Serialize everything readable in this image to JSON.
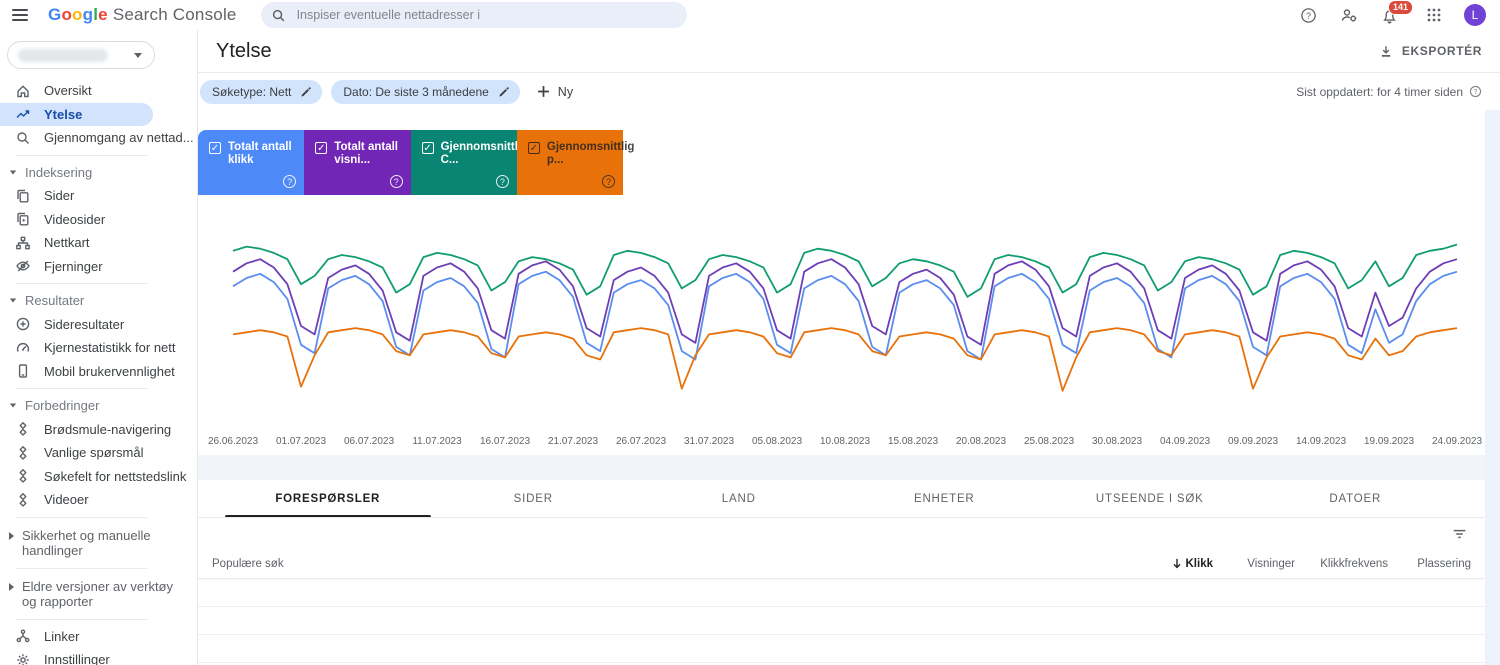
{
  "topbar": {
    "logo_google": "Google",
    "logo_suffix": "Search Console",
    "logo_letter_colors": [
      "#4285f4",
      "#ea4335",
      "#fbbc05",
      "#4285f4",
      "#34a853",
      "#ea4335"
    ],
    "search_placeholder": "Inspiser eventuelle nettadresser i",
    "notification_count": "141",
    "avatar_letter": "L",
    "avatar_color": "#7142d6"
  },
  "sidebar": {
    "property_selector": {
      "value": ""
    },
    "items": [
      {
        "type": "item",
        "icon": "home-icon",
        "label": "Oversikt"
      },
      {
        "type": "item",
        "icon": "trending-up-icon",
        "label": "Ytelse",
        "selected": true
      },
      {
        "type": "item",
        "icon": "search-icon",
        "label": "Gjennomgang av nettad..."
      },
      {
        "type": "divider"
      },
      {
        "type": "header",
        "label": "Indeksering"
      },
      {
        "type": "item",
        "icon": "pages-icon",
        "label": "Sider"
      },
      {
        "type": "item",
        "icon": "video-pages-icon",
        "label": "Videosider"
      },
      {
        "type": "item",
        "icon": "sitemap-icon",
        "label": "Nettkart"
      },
      {
        "type": "item",
        "icon": "eye-off-icon",
        "label": "Fjerninger"
      },
      {
        "type": "divider"
      },
      {
        "type": "header",
        "label": "Resultater"
      },
      {
        "type": "item",
        "icon": "circle-plus-icon",
        "label": "Sideresultater"
      },
      {
        "type": "item",
        "icon": "speedometer-icon",
        "label": "Kjernestatistikk for nett"
      },
      {
        "type": "item",
        "icon": "mobile-icon",
        "label": "Mobil brukervennlighet"
      },
      {
        "type": "divider"
      },
      {
        "type": "header",
        "label": "Forbedringer"
      },
      {
        "type": "item",
        "icon": "rich-results-icon",
        "label": "Brødsmule-navigering"
      },
      {
        "type": "item",
        "icon": "rich-results-icon",
        "label": "Vanlige spørsmål"
      },
      {
        "type": "item",
        "icon": "rich-results-icon",
        "label": "Søkefelt for nettstedslink"
      },
      {
        "type": "item",
        "icon": "rich-results-icon",
        "label": "Videoer"
      },
      {
        "type": "divider"
      },
      {
        "type": "header-collapsed",
        "label": "Sikkerhet og manuelle handlinger"
      },
      {
        "type": "divider"
      },
      {
        "type": "header-collapsed",
        "label": "Eldre versjoner av verktøy og rapporter"
      },
      {
        "type": "divider"
      },
      {
        "type": "item",
        "icon": "links-icon",
        "label": "Linker"
      },
      {
        "type": "item",
        "icon": "gear-icon",
        "label": "Innstillinger"
      },
      {
        "type": "divider"
      }
    ]
  },
  "header": {
    "title": "Ytelse",
    "export_label": "EKSPORTÉR",
    "last_updated": "Sist oppdatert: for 4 timer siden"
  },
  "filters": {
    "chips": [
      {
        "label": "Søketype: Nett"
      },
      {
        "label": "Dato: De siste 3 månedene"
      }
    ],
    "new_label": "Ny"
  },
  "metric_cards": [
    {
      "label": "Totalt antall klikk",
      "checked": true,
      "bg": "#4e8af7",
      "text_color": "#ffffff"
    },
    {
      "label": "Totalt antall visni...",
      "checked": true,
      "bg": "#7126b5",
      "text_color": "#ffffff"
    },
    {
      "label": "Gjennomsnittlig C...",
      "checked": true,
      "bg": "#0b8573",
      "text_color": "#ffffff"
    },
    {
      "label": "Gjennomsnittlig p...",
      "checked": true,
      "bg": "#e8710a",
      "text_color": "rgba(32,33,36,0.82)"
    }
  ],
  "chart_data": {
    "type": "line",
    "title": "",
    "grid": false,
    "legend_position": "top-cards",
    "x_axis": {
      "start_date": "26.06.2023",
      "end_date": "24.09.2023",
      "points_per_series": 91,
      "tick_labels": [
        "26.06.2023",
        "01.07.2023",
        "06.07.2023",
        "11.07.2023",
        "16.07.2023",
        "21.07.2023",
        "26.07.2023",
        "31.07.2023",
        "05.08.2023",
        "10.08.2023",
        "15.08.2023",
        "20.08.2023",
        "25.08.2023",
        "30.08.2023",
        "04.09.2023",
        "09.09.2023",
        "14.09.2023",
        "19.09.2023",
        "24.09.2023"
      ]
    },
    "y_axis": {
      "visible": false,
      "note": "No y-axis labels shown in UI; series values are estimated, normalized 0-100 of plot height"
    },
    "series": [
      {
        "name": "Totalt antall klikk",
        "color": "#5b8def",
        "values": [
          63,
          67,
          69,
          65,
          57,
          35,
          31,
          62,
          66,
          68,
          64,
          56,
          34,
          30,
          61,
          65,
          67,
          63,
          55,
          33,
          29,
          64,
          68,
          70,
          66,
          58,
          36,
          32,
          60,
          64,
          66,
          62,
          54,
          32,
          28,
          63,
          67,
          69,
          65,
          57,
          35,
          31,
          62,
          66,
          68,
          64,
          56,
          34,
          30,
          60,
          64,
          66,
          62,
          54,
          32,
          28,
          63,
          67,
          69,
          65,
          57,
          35,
          31,
          61,
          65,
          67,
          63,
          55,
          33,
          29,
          62,
          66,
          68,
          64,
          56,
          34,
          30,
          63,
          67,
          69,
          65,
          57,
          35,
          31,
          52,
          36,
          40,
          56,
          64,
          68,
          70
        ]
      },
      {
        "name": "Totalt antall visninger",
        "color": "#6e3eb6",
        "values": [
          70,
          74,
          76,
          72,
          64,
          44,
          40,
          67,
          71,
          73,
          69,
          61,
          41,
          37,
          68,
          72,
          74,
          70,
          62,
          42,
          38,
          69,
          73,
          75,
          71,
          63,
          43,
          39,
          66,
          70,
          72,
          68,
          60,
          40,
          36,
          68,
          72,
          74,
          70,
          62,
          42,
          38,
          70,
          74,
          76,
          72,
          64,
          44,
          40,
          65,
          69,
          71,
          67,
          59,
          39,
          35,
          69,
          73,
          75,
          71,
          63,
          43,
          39,
          68,
          72,
          74,
          70,
          62,
          42,
          38,
          67,
          71,
          73,
          69,
          61,
          41,
          37,
          69,
          73,
          75,
          71,
          63,
          43,
          39,
          60,
          44,
          48,
          62,
          70,
          74,
          76
        ]
      },
      {
        "name": "Gjennomsnittlig CTR",
        "color": "#0f9d70",
        "values": [
          80,
          82,
          81,
          79,
          76,
          64,
          68,
          76,
          78,
          77,
          75,
          72,
          60,
          64,
          77,
          79,
          78,
          76,
          73,
          61,
          65,
          75,
          77,
          76,
          74,
          71,
          59,
          63,
          78,
          80,
          79,
          77,
          74,
          62,
          66,
          76,
          78,
          77,
          75,
          72,
          60,
          64,
          79,
          81,
          80,
          78,
          75,
          63,
          67,
          74,
          76,
          75,
          73,
          70,
          58,
          62,
          76,
          78,
          77,
          75,
          72,
          60,
          64,
          77,
          79,
          78,
          76,
          73,
          61,
          65,
          75,
          77,
          76,
          74,
          71,
          59,
          63,
          78,
          80,
          79,
          77,
          74,
          62,
          66,
          75,
          63,
          67,
          78,
          80,
          81,
          83
        ]
      },
      {
        "name": "Gjennomsnittlig posisjon",
        "color": "#e8710a",
        "values": [
          40,
          41,
          42,
          41,
          39,
          15,
          30,
          41,
          42,
          43,
          42,
          40,
          32,
          30,
          40,
          41,
          42,
          41,
          39,
          31,
          29,
          39,
          40,
          41,
          40,
          38,
          30,
          28,
          41,
          42,
          43,
          42,
          40,
          14,
          30,
          40,
          41,
          42,
          41,
          39,
          31,
          29,
          41,
          42,
          43,
          42,
          40,
          32,
          30,
          39,
          40,
          41,
          40,
          38,
          30,
          28,
          40,
          41,
          42,
          41,
          39,
          13,
          29,
          41,
          42,
          43,
          42,
          40,
          32,
          30,
          40,
          41,
          42,
          41,
          39,
          14,
          29,
          39,
          40,
          41,
          40,
          38,
          30,
          28,
          38,
          30,
          32,
          39,
          41,
          42,
          43
        ]
      }
    ]
  },
  "tabs": [
    {
      "label": "FORESPØRSLER",
      "active": true
    },
    {
      "label": "SIDER"
    },
    {
      "label": "LAND"
    },
    {
      "label": "ENHETER"
    },
    {
      "label": "UTSEENDE I SØK"
    },
    {
      "label": "DATOER"
    }
  ],
  "table": {
    "first_column_header": "Populære søk",
    "metric_columns": [
      "Klikk",
      "Visninger",
      "Klikkfrekvens",
      "Plassering"
    ],
    "sorted_by": "Klikk",
    "sort_direction": "desc",
    "visible_empty_rows": 3,
    "rows": []
  }
}
